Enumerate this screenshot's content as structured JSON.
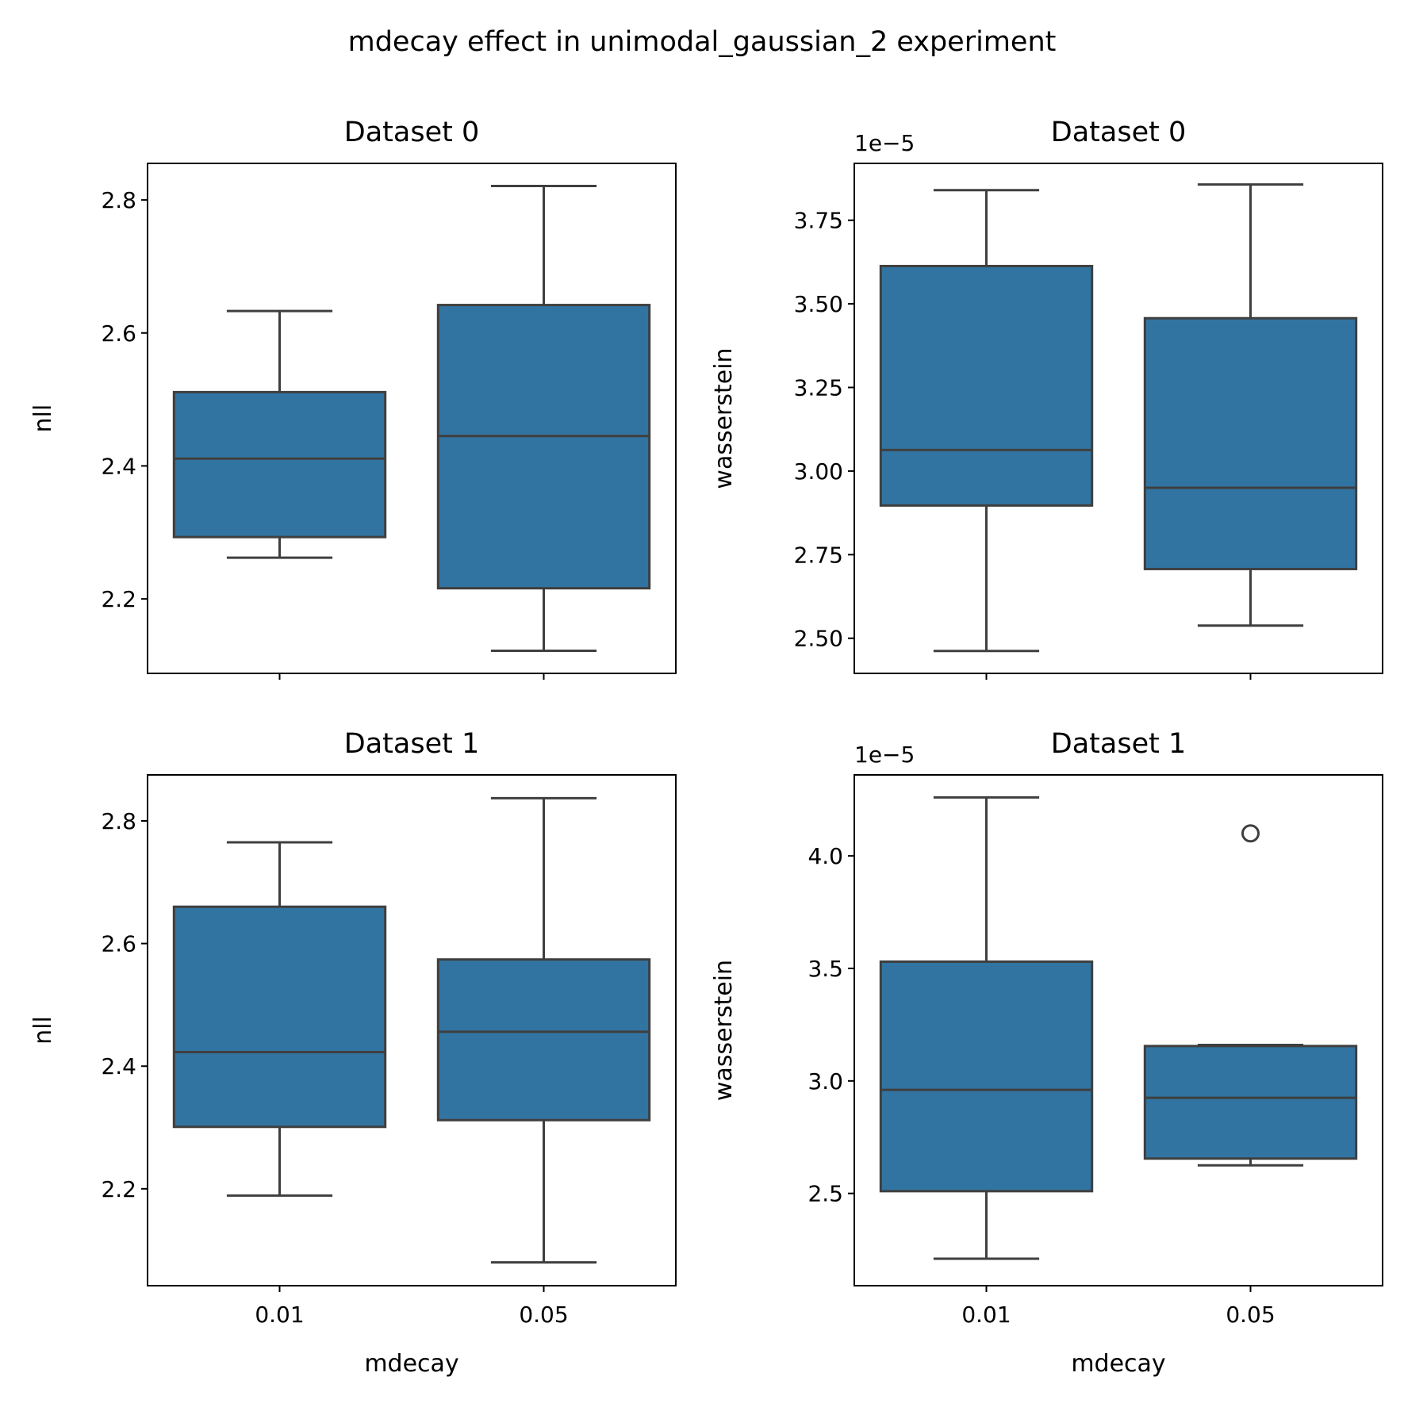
{
  "figure": {
    "suptitle": "mdecay effect in unimodal_gaussian_2 experiment"
  },
  "style": {
    "box_fill": "#3274a1",
    "line_color": "#3f3f3f",
    "axis_color": "#000000"
  },
  "chart_data": [
    {
      "type": "box",
      "title": "Dataset 0",
      "xlabel": "",
      "ylabel": "nll",
      "offset_label": "",
      "categories": [
        "0.01",
        "0.05"
      ],
      "show_xticklabels": false,
      "ylim": [
        2.088,
        2.855
      ],
      "yticks": [
        2.2,
        2.4,
        2.6,
        2.8
      ],
      "ytick_labels": [
        "2.2",
        "2.4",
        "2.6",
        "2.8"
      ],
      "boxes": [
        {
          "category": "0.01",
          "whislo": 2.262,
          "q1": 2.293,
          "med": 2.411,
          "q3": 2.511,
          "whishi": 2.633,
          "fliers": []
        },
        {
          "category": "0.05",
          "whislo": 2.122,
          "q1": 2.216,
          "med": 2.445,
          "q3": 2.642,
          "whishi": 2.821,
          "fliers": []
        }
      ]
    },
    {
      "type": "box",
      "title": "Dataset 0",
      "xlabel": "",
      "ylabel": "wasserstein",
      "offset_label": "1e−5",
      "categories": [
        "0.01",
        "0.05"
      ],
      "show_xticklabels": false,
      "ylim": [
        2.395,
        3.92
      ],
      "yticks": [
        2.5,
        2.75,
        3.0,
        3.25,
        3.5,
        3.75
      ],
      "ytick_labels": [
        "2.50",
        "2.75",
        "3.00",
        "3.25",
        "3.50",
        "3.75"
      ],
      "boxes": [
        {
          "category": "0.01",
          "whislo": 2.462,
          "q1": 2.897,
          "med": 3.063,
          "q3": 3.613,
          "whishi": 3.84,
          "fliers": []
        },
        {
          "category": "0.05",
          "whislo": 2.538,
          "q1": 2.707,
          "med": 2.95,
          "q3": 3.457,
          "whishi": 3.857,
          "fliers": []
        }
      ]
    },
    {
      "type": "box",
      "title": "Dataset 1",
      "xlabel": "mdecay",
      "ylabel": "nll",
      "offset_label": "",
      "categories": [
        "0.01",
        "0.05"
      ],
      "show_xticklabels": true,
      "ylim": [
        2.042,
        2.875
      ],
      "yticks": [
        2.2,
        2.4,
        2.6,
        2.8
      ],
      "ytick_labels": [
        "2.2",
        "2.4",
        "2.6",
        "2.8"
      ],
      "boxes": [
        {
          "category": "0.01",
          "whislo": 2.189,
          "q1": 2.301,
          "med": 2.423,
          "q3": 2.66,
          "whishi": 2.765,
          "fliers": []
        },
        {
          "category": "0.05",
          "whislo": 2.08,
          "q1": 2.312,
          "med": 2.456,
          "q3": 2.574,
          "whishi": 2.837,
          "fliers": []
        }
      ]
    },
    {
      "type": "box",
      "title": "Dataset 1",
      "xlabel": "mdecay",
      "ylabel": "wasserstein",
      "offset_label": "1e−5",
      "categories": [
        "0.01",
        "0.05"
      ],
      "show_xticklabels": true,
      "ylim": [
        2.09,
        4.36
      ],
      "yticks": [
        2.5,
        3.0,
        3.5,
        4.0
      ],
      "ytick_labels": [
        "2.5",
        "3.0",
        "3.5",
        "4.0"
      ],
      "boxes": [
        {
          "category": "0.01",
          "whislo": 2.21,
          "q1": 2.51,
          "med": 2.96,
          "q3": 3.53,
          "whishi": 4.26,
          "fliers": []
        },
        {
          "category": "0.05",
          "whislo": 2.625,
          "q1": 2.655,
          "med": 2.925,
          "q3": 3.155,
          "whishi": 3.16,
          "fliers": [
            4.1
          ]
        }
      ]
    }
  ]
}
